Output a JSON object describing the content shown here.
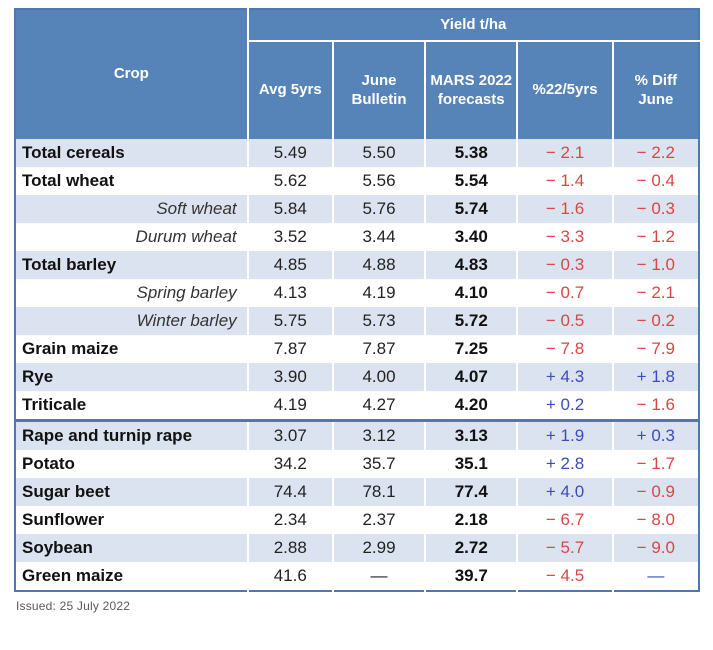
{
  "colors": {
    "header_bg": "#5784b8",
    "frame_border": "#4d79b2",
    "row_alt": "#dce3f0",
    "negative": "#d84646",
    "positive": "#3c4bbe"
  },
  "chart_data": {
    "type": "table",
    "group_header": "Yield t/ha",
    "columns": [
      "Crop",
      "Avg 5yrs",
      "June Bulletin",
      "MARS 2022 forecasts",
      "%22/5yrs",
      "% Diff June"
    ],
    "rows": [
      {
        "crop": "Total cereals",
        "crop_style": "bold",
        "avg_5yrs": "5.49",
        "june_bulletin": "5.50",
        "mars_2022": "5.38",
        "pct_22_5yrs": "− 2.1",
        "pct_22_5yrs_color": "negative",
        "pct_diff_june": "− 2.2",
        "pct_diff_june_color": "negative",
        "section_break": false
      },
      {
        "crop": "Total wheat",
        "crop_style": "bold",
        "avg_5yrs": "5.62",
        "june_bulletin": "5.56",
        "mars_2022": "5.54",
        "pct_22_5yrs": "− 1.4",
        "pct_22_5yrs_color": "negative",
        "pct_diff_june": "− 0.4",
        "pct_diff_june_color": "negative",
        "section_break": false
      },
      {
        "crop": "Soft wheat",
        "crop_style": "italic",
        "avg_5yrs": "5.84",
        "june_bulletin": "5.76",
        "mars_2022": "5.74",
        "pct_22_5yrs": "− 1.6",
        "pct_22_5yrs_color": "negative",
        "pct_diff_june": "− 0.3",
        "pct_diff_june_color": "negative",
        "section_break": false
      },
      {
        "crop": "Durum wheat",
        "crop_style": "italic",
        "avg_5yrs": "3.52",
        "june_bulletin": "3.44",
        "mars_2022": "3.40",
        "pct_22_5yrs": "− 3.3",
        "pct_22_5yrs_color": "negative",
        "pct_diff_june": "− 1.2",
        "pct_diff_june_color": "negative",
        "section_break": false
      },
      {
        "crop": "Total barley",
        "crop_style": "bold",
        "avg_5yrs": "4.85",
        "june_bulletin": "4.88",
        "mars_2022": "4.83",
        "pct_22_5yrs": "− 0.3",
        "pct_22_5yrs_color": "negative",
        "pct_diff_june": "− 1.0",
        "pct_diff_june_color": "negative",
        "section_break": false
      },
      {
        "crop": "Spring barley",
        "crop_style": "italic",
        "avg_5yrs": "4.13",
        "june_bulletin": "4.19",
        "mars_2022": "4.10",
        "pct_22_5yrs": "− 0.7",
        "pct_22_5yrs_color": "negative",
        "pct_diff_june": "− 2.1",
        "pct_diff_june_color": "negative",
        "section_break": false
      },
      {
        "crop": "Winter barley",
        "crop_style": "italic",
        "avg_5yrs": "5.75",
        "june_bulletin": "5.73",
        "mars_2022": "5.72",
        "pct_22_5yrs": "− 0.5",
        "pct_22_5yrs_color": "negative",
        "pct_diff_june": "− 0.2",
        "pct_diff_june_color": "negative",
        "section_break": false
      },
      {
        "crop": "Grain maize",
        "crop_style": "bold",
        "avg_5yrs": "7.87",
        "june_bulletin": "7.87",
        "mars_2022": "7.25",
        "pct_22_5yrs": "− 7.8",
        "pct_22_5yrs_color": "negative",
        "pct_diff_june": "− 7.9",
        "pct_diff_june_color": "negative",
        "section_break": false
      },
      {
        "crop": "Rye",
        "crop_style": "bold",
        "avg_5yrs": "3.90",
        "june_bulletin": "4.00",
        "mars_2022": "4.07",
        "pct_22_5yrs": "+ 4.3",
        "pct_22_5yrs_color": "positive",
        "pct_diff_june": "+ 1.8",
        "pct_diff_june_color": "positive",
        "section_break": false
      },
      {
        "crop": "Triticale",
        "crop_style": "bold",
        "avg_5yrs": "4.19",
        "june_bulletin": "4.27",
        "mars_2022": "4.20",
        "pct_22_5yrs": "+ 0.2",
        "pct_22_5yrs_color": "positive",
        "pct_diff_june": "− 1.6",
        "pct_diff_june_color": "negative",
        "section_break": false
      },
      {
        "crop": "Rape and turnip rape",
        "crop_style": "bold",
        "avg_5yrs": "3.07",
        "june_bulletin": "3.12",
        "mars_2022": "3.13",
        "pct_22_5yrs": "+ 1.9",
        "pct_22_5yrs_color": "positive",
        "pct_diff_june": "+ 0.3",
        "pct_diff_june_color": "positive",
        "section_break": true
      },
      {
        "crop": "Potato",
        "crop_style": "bold",
        "avg_5yrs": "34.2",
        "june_bulletin": "35.7",
        "mars_2022": "35.1",
        "pct_22_5yrs": "+ 2.8",
        "pct_22_5yrs_color": "positive",
        "pct_diff_june": "− 1.7",
        "pct_diff_june_color": "negative",
        "section_break": false
      },
      {
        "crop": "Sugar beet",
        "crop_style": "bold",
        "avg_5yrs": "74.4",
        "june_bulletin": "78.1",
        "mars_2022": "77.4",
        "pct_22_5yrs": "+ 4.0",
        "pct_22_5yrs_color": "positive",
        "pct_diff_june": "− 0.9",
        "pct_diff_june_color": "negative",
        "section_break": false
      },
      {
        "crop": "Sunflower",
        "crop_style": "bold",
        "avg_5yrs": "2.34",
        "june_bulletin": "2.37",
        "mars_2022": "2.18",
        "pct_22_5yrs": "− 6.7",
        "pct_22_5yrs_color": "negative",
        "pct_diff_june": "− 8.0",
        "pct_diff_june_color": "negative",
        "section_break": false
      },
      {
        "crop": "Soybean",
        "crop_style": "bold",
        "avg_5yrs": "2.88",
        "june_bulletin": "2.99",
        "mars_2022": "2.72",
        "pct_22_5yrs": "− 5.7",
        "pct_22_5yrs_color": "negative",
        "pct_diff_june": "− 9.0",
        "pct_diff_june_color": "negative",
        "section_break": false
      },
      {
        "crop": "Green maize",
        "crop_style": "bold",
        "avg_5yrs": "41.6",
        "june_bulletin": "—",
        "mars_2022": "39.7",
        "pct_22_5yrs": "− 4.5",
        "pct_22_5yrs_color": "negative",
        "pct_diff_june": "—",
        "pct_diff_june_color": "positive",
        "section_break": false
      }
    ]
  },
  "footer": {
    "issued": "Issued: 25 July 2022"
  }
}
